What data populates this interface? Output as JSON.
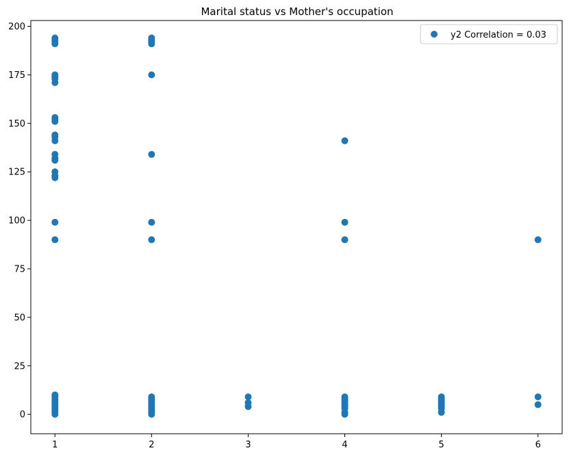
{
  "chart_data": {
    "type": "scatter",
    "title": "Marital status vs Mother's occupation",
    "xlabel": "",
    "ylabel": "",
    "xlim": [
      0.75,
      6.25
    ],
    "ylim": [
      -10,
      203
    ],
    "xticks": [
      1,
      2,
      3,
      4,
      5,
      6
    ],
    "yticks": [
      0,
      25,
      50,
      75,
      100,
      125,
      150,
      175,
      200
    ],
    "grid": false,
    "legend_position": "top-right",
    "series": [
      {
        "name": "y2 Correlation = 0.03",
        "color": "#1f77b4",
        "points": [
          [
            1,
            0
          ],
          [
            1,
            1
          ],
          [
            1,
            2
          ],
          [
            1,
            3
          ],
          [
            1,
            4
          ],
          [
            1,
            5
          ],
          [
            1,
            6
          ],
          [
            1,
            7
          ],
          [
            1,
            8
          ],
          [
            1,
            9
          ],
          [
            1,
            10
          ],
          [
            1,
            90
          ],
          [
            1,
            99
          ],
          [
            1,
            122
          ],
          [
            1,
            123
          ],
          [
            1,
            125
          ],
          [
            1,
            131
          ],
          [
            1,
            132
          ],
          [
            1,
            134
          ],
          [
            1,
            141
          ],
          [
            1,
            143
          ],
          [
            1,
            144
          ],
          [
            1,
            151
          ],
          [
            1,
            152
          ],
          [
            1,
            153
          ],
          [
            1,
            171
          ],
          [
            1,
            173
          ],
          [
            1,
            174
          ],
          [
            1,
            175
          ],
          [
            1,
            191
          ],
          [
            1,
            192
          ],
          [
            1,
            193
          ],
          [
            1,
            194
          ],
          [
            2,
            0
          ],
          [
            2,
            1
          ],
          [
            2,
            2
          ],
          [
            2,
            3
          ],
          [
            2,
            4
          ],
          [
            2,
            5
          ],
          [
            2,
            6
          ],
          [
            2,
            7
          ],
          [
            2,
            8
          ],
          [
            2,
            9
          ],
          [
            2,
            90
          ],
          [
            2,
            99
          ],
          [
            2,
            134
          ],
          [
            2,
            175
          ],
          [
            2,
            191
          ],
          [
            2,
            192
          ],
          [
            2,
            193
          ],
          [
            2,
            194
          ],
          [
            3,
            4
          ],
          [
            3,
            6
          ],
          [
            3,
            9
          ],
          [
            4,
            0
          ],
          [
            4,
            1
          ],
          [
            4,
            3
          ],
          [
            4,
            4
          ],
          [
            4,
            5
          ],
          [
            4,
            6
          ],
          [
            4,
            7
          ],
          [
            4,
            8
          ],
          [
            4,
            9
          ],
          [
            4,
            90
          ],
          [
            4,
            99
          ],
          [
            4,
            141
          ],
          [
            5,
            1
          ],
          [
            5,
            3
          ],
          [
            5,
            4
          ],
          [
            5,
            5
          ],
          [
            5,
            6
          ],
          [
            5,
            7
          ],
          [
            5,
            8
          ],
          [
            5,
            9
          ],
          [
            6,
            5
          ],
          [
            6,
            9
          ],
          [
            6,
            90
          ]
        ]
      }
    ]
  }
}
